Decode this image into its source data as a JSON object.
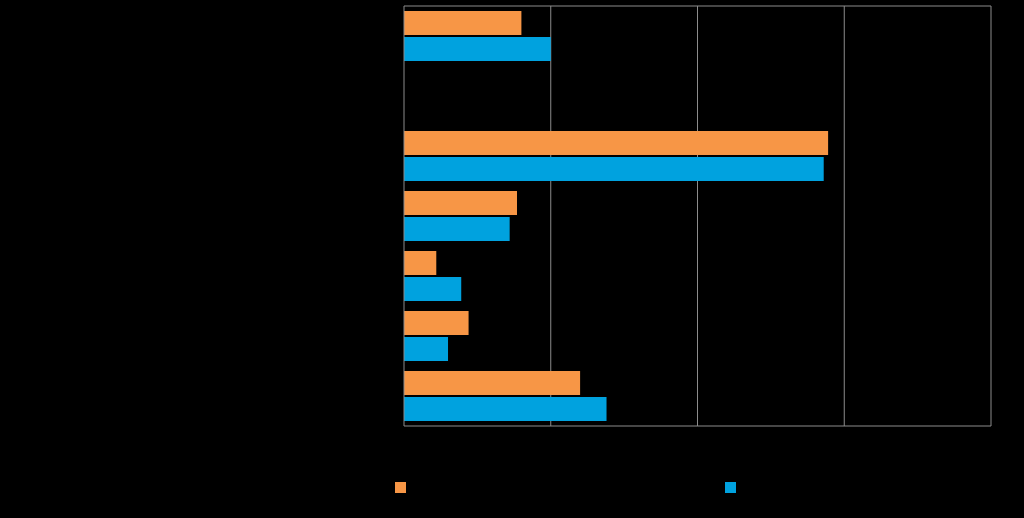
{
  "chart_data": {
    "type": "bar",
    "orientation": "horizontal",
    "title": "",
    "xlabel": "",
    "ylabel": "",
    "xlim": [
      0,
      40
    ],
    "grid": true,
    "legend_position": "bottom",
    "categories": [
      "",
      "",
      "",
      "",
      "",
      "",
      ""
    ],
    "series": [
      {
        "name": "",
        "color": "#F79646",
        "values": [
          8.0,
          null,
          28.9,
          7.7,
          2.2,
          4.4,
          12.0
        ]
      },
      {
        "name": "",
        "color": "#00A2DF",
        "values": [
          10.0,
          null,
          28.6,
          7.2,
          3.9,
          3.0,
          13.8
        ]
      }
    ]
  }
}
